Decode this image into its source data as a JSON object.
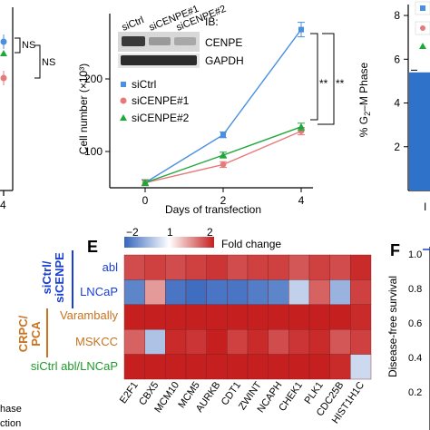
{
  "colors": {
    "ctrl": "#4a90e2",
    "cenpe1": "#e8797a",
    "cenpe2": "#1fa83a",
    "heat_low": "#3566bd",
    "heat_mid": "#ffffff",
    "heat_high": "#c61f1f",
    "label_blue": "#1a3fd6",
    "label_orange": "#c8731f",
    "label_green": "#1f9a2a"
  },
  "left_fragment": {
    "ns1": "NS",
    "ns2": "NS",
    "xtick": "4"
  },
  "blot": {
    "header": "IB:",
    "lanes": [
      "siCtrl",
      "siCENPE#1",
      "siCENPE#2"
    ],
    "bands": [
      "CENPE",
      "GAPDH"
    ]
  },
  "chart_data": [
    {
      "type": "line",
      "ylabel": "Cell number (×10³)",
      "xlabel": "Days of transfection",
      "x": [
        0,
        2,
        4
      ],
      "xticks": [
        "0",
        "2",
        "4"
      ],
      "yticks": [
        100,
        200
      ],
      "ylim": [
        50,
        290
      ],
      "series": [
        {
          "name": "siCtrl",
          "values": [
            57,
            123,
            268
          ],
          "err": [
            4,
            4,
            10
          ],
          "marker": "square"
        },
        {
          "name": "siCENPE#1",
          "values": [
            57,
            82,
            128
          ],
          "err": [
            4,
            4,
            5
          ],
          "marker": "circle"
        },
        {
          "name": "siCENPE#2",
          "values": [
            57,
            95,
            134
          ],
          "err": [
            4,
            4,
            5
          ],
          "marker": "triangle"
        }
      ],
      "significance": [
        "**",
        "**"
      ]
    },
    {
      "type": "bar",
      "ylabel": "% G₂–M Phase",
      "yticks": [
        "2",
        "4",
        "6",
        "8"
      ],
      "ylim": [
        0,
        8.5
      ],
      "values": [
        5.4
      ],
      "err": [
        0.1
      ]
    },
    {
      "type": "heatmap",
      "panel_label": "E",
      "colorbar": {
        "ticks": [
          "−2",
          "1",
          "2"
        ],
        "label": "Fold change"
      },
      "columns": [
        "E2F1",
        "CBX5",
        "MCM10",
        "MCM5",
        "AURKB",
        "CDT1",
        "ZWINT",
        "NCAPH",
        "CHEK1",
        "PLK1",
        "CDC25B",
        "HIST1H1C"
      ],
      "rows": [
        "abl",
        "LNCaP",
        "Varambally",
        "MSKCC",
        "siCtrl abl/LNCaP"
      ],
      "groups": [
        "siCtrl/ siCENPE",
        "CRPC/ PCA"
      ],
      "values": [
        [
          1.6,
          1.7,
          1.6,
          1.7,
          1.8,
          1.6,
          1.7,
          1.7,
          1.5,
          1.7,
          1.6,
          1.9
        ],
        [
          -1.6,
          0.9,
          -1.8,
          -1.9,
          -1.8,
          -1.8,
          -1.7,
          -1.6,
          -0.6,
          1.4,
          -1.0,
          1.7
        ],
        [
          2.0,
          2.0,
          2.0,
          2.0,
          2.0,
          2.0,
          2.0,
          2.0,
          2.0,
          2.0,
          2.0,
          1.9
        ],
        [
          1.4,
          -0.8,
          1.9,
          1.8,
          2.0,
          1.7,
          1.9,
          1.6,
          1.8,
          1.9,
          1.5,
          1.7
        ],
        [
          2.0,
          2.0,
          2.0,
          2.0,
          2.0,
          2.0,
          2.0,
          2.0,
          2.0,
          2.0,
          1.9,
          -0.5
        ]
      ]
    },
    {
      "type": "line",
      "panel_label": "F",
      "ylabel": "Disease-free survival",
      "yticks": [
        "1.0",
        "0.8",
        "0.6",
        "0.4",
        "0.2"
      ]
    }
  ],
  "bottom_left": {
    "line1": "hase",
    "line2": "ction"
  }
}
